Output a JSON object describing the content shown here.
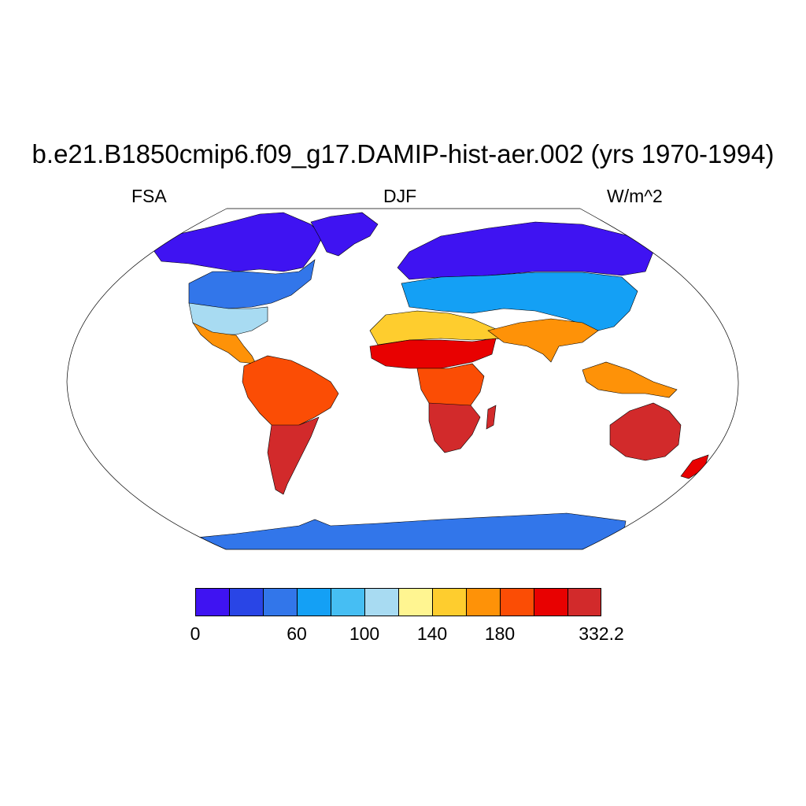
{
  "title": "b.e21.B1850cmip6.f09_g17.DAMIP-hist-aer.002 (yrs 1970-1994)",
  "subtitle_left": "FSA",
  "subtitle_center": "DJF",
  "subtitle_right": "W/m^2",
  "projection": "Robinson",
  "colorbar": {
    "colors": [
      "#3f13f2",
      "#2945e6",
      "#3276ea",
      "#14a0f5",
      "#46bef3",
      "#a8dbf2",
      "#fff591",
      "#fecd2e",
      "#fe9208",
      "#fb4d05",
      "#e80101",
      "#d22a2b"
    ],
    "labels": [
      {
        "text": "0",
        "boundary": 0
      },
      {
        "text": "60",
        "boundary": 3
      },
      {
        "text": "100",
        "boundary": 5
      },
      {
        "text": "140",
        "boundary": 7
      },
      {
        "text": "180",
        "boundary": 9
      },
      {
        "text": "332.2",
        "boundary": 12
      }
    ]
  },
  "regions": [
    {
      "name": "greenland-antarctic-north",
      "level": 0
    },
    {
      "name": "north-america-north",
      "level": 0
    },
    {
      "name": "eurasia-north",
      "level": 0
    },
    {
      "name": "north-america-mid",
      "level": 2
    },
    {
      "name": "eurasia-mid",
      "level": 3
    },
    {
      "name": "north-america-south",
      "level": 5
    },
    {
      "name": "mexico-central-america",
      "level": 8
    },
    {
      "name": "north-africa",
      "level": 7
    },
    {
      "name": "sahel",
      "level": 10
    },
    {
      "name": "south-asia",
      "level": 8
    },
    {
      "name": "southeast-asia",
      "level": 8
    },
    {
      "name": "south-america-north",
      "level": 9
    },
    {
      "name": "south-america-south",
      "level": 11
    },
    {
      "name": "central-africa",
      "level": 9
    },
    {
      "name": "southern-africa",
      "level": 11
    },
    {
      "name": "australia",
      "level": 11
    },
    {
      "name": "new-zealand",
      "level": 10
    },
    {
      "name": "antarctica",
      "level": 2
    }
  ]
}
